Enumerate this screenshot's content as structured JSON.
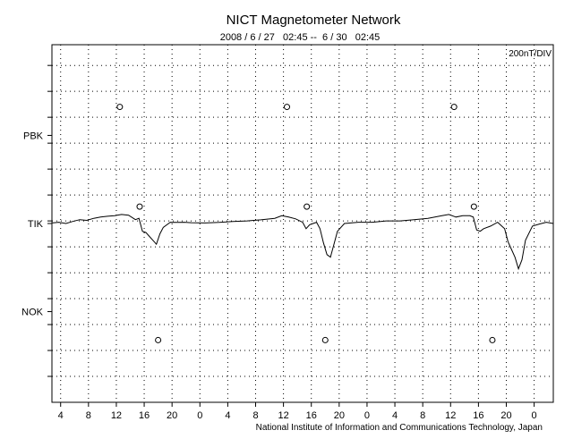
{
  "chart_data": {
    "type": "line",
    "title": "NICT Magnetometer Network",
    "subtitle": "2008 / 6 / 27   02:45 --  6 / 30   02:45",
    "scale_label": "200nT/DIV",
    "credit": "National Institute of Information and Communications Technology, Japan",
    "xlabel": "",
    "ylabel": "",
    "x_unit": "hours from 2008-06-27 02:45",
    "xlim": [
      0,
      72
    ],
    "y_unit": "divisions (200 nT each), relative to TIK baseline",
    "ylim": [
      -6.9,
      6.9
    ],
    "grid": true,
    "x_ticks": [
      {
        "hour": 1.25,
        "label": "4"
      },
      {
        "hour": 5.25,
        "label": "8"
      },
      {
        "hour": 9.25,
        "label": "12"
      },
      {
        "hour": 13.25,
        "label": "16"
      },
      {
        "hour": 17.25,
        "label": "20"
      },
      {
        "hour": 21.25,
        "label": "0"
      },
      {
        "hour": 25.25,
        "label": "4"
      },
      {
        "hour": 29.25,
        "label": "8"
      },
      {
        "hour": 33.25,
        "label": "12"
      },
      {
        "hour": 37.25,
        "label": "16"
      },
      {
        "hour": 41.25,
        "label": "20"
      },
      {
        "hour": 45.25,
        "label": "0"
      },
      {
        "hour": 49.25,
        "label": "4"
      },
      {
        "hour": 53.25,
        "label": "8"
      },
      {
        "hour": 57.25,
        "label": "12"
      },
      {
        "hour": 61.25,
        "label": "16"
      },
      {
        "hour": 65.25,
        "label": "20"
      },
      {
        "hour": 69.25,
        "label": "0"
      }
    ],
    "stations": [
      {
        "name": "PBK",
        "offset": 3.4
      },
      {
        "name": "TIK",
        "offset": 0
      },
      {
        "name": "NOK",
        "offset": -3.4
      }
    ],
    "markers": [
      {
        "station": "PBK",
        "hours": [
          9.75,
          33.75,
          57.75
        ]
      },
      {
        "station": "TIK",
        "hours": [
          12.6,
          36.6,
          60.6
        ]
      },
      {
        "station": "NOK",
        "hours": [
          15.25,
          39.25,
          63.25
        ]
      }
    ],
    "series": [
      {
        "name": "TIK H-component",
        "x": [
          0,
          1,
          2,
          3,
          4,
          5,
          6,
          7,
          8,
          9,
          10,
          11,
          12,
          12.5,
          13,
          13.5,
          14,
          14.5,
          15,
          15.5,
          16,
          17,
          18,
          19,
          20,
          22,
          24,
          26,
          28,
          30,
          32,
          33,
          34,
          35,
          36,
          36.5,
          37,
          37.5,
          38,
          38.5,
          39,
          39.5,
          40,
          40.5,
          41,
          42,
          44,
          46,
          48,
          50,
          52,
          54,
          56,
          57,
          58,
          59,
          60,
          60.5,
          61,
          61.5,
          62,
          63,
          64,
          65,
          65.5,
          66,
          66.5,
          67,
          67.5,
          68,
          69,
          70,
          71,
          72
        ],
        "values": [
          0.02,
          0.05,
          0.0,
          0.08,
          0.15,
          0.12,
          0.2,
          0.25,
          0.28,
          0.3,
          0.35,
          0.32,
          0.15,
          0.2,
          -0.3,
          -0.35,
          -0.5,
          -0.65,
          -0.8,
          -0.4,
          -0.15,
          0.05,
          0.04,
          0.05,
          0.03,
          0.02,
          0.04,
          0.08,
          0.1,
          0.14,
          0.2,
          0.3,
          0.25,
          0.18,
          0.05,
          -0.2,
          -0.05,
          0.0,
          0.05,
          -0.2,
          -0.75,
          -1.2,
          -1.3,
          -0.8,
          -0.3,
          0.0,
          0.05,
          0.05,
          0.1,
          0.1,
          0.15,
          0.2,
          0.3,
          0.35,
          0.25,
          0.3,
          0.3,
          0.25,
          -0.25,
          -0.3,
          -0.2,
          -0.1,
          0.05,
          -0.2,
          -0.7,
          -1.0,
          -1.3,
          -1.75,
          -1.4,
          -0.65,
          -0.1,
          -0.02,
          0.05,
          0.0
        ]
      }
    ]
  }
}
